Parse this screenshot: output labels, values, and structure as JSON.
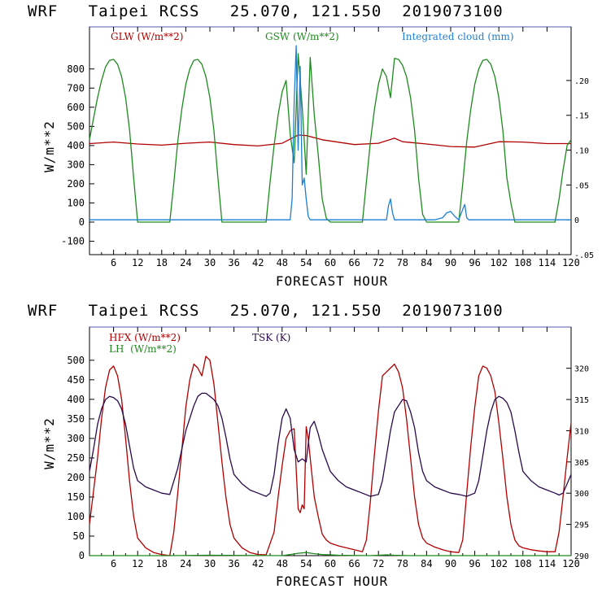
{
  "colors": {
    "red": "#b00000",
    "green": "#1e8a1e",
    "blue": "#1e7fd0",
    "purple": "#2a0a4a"
  },
  "chart_data": [
    {
      "type": "line",
      "title": "WRF   Taipei RCSS   25.070, 121.550  2019073100",
      "xlabel": "FORECAST HOUR",
      "ylabel": "W/m**2",
      "xlim": [
        0,
        120
      ],
      "ylim": [
        -170,
        1020
      ],
      "xticks": [
        6,
        12,
        18,
        24,
        30,
        36,
        42,
        48,
        54,
        60,
        66,
        72,
        78,
        84,
        90,
        96,
        102,
        108,
        114,
        120
      ],
      "yticks": [
        -100,
        0,
        100,
        200,
        300,
        400,
        500,
        600,
        700,
        800
      ],
      "y2lim": [
        -0.05,
        0.277
      ],
      "y2ticks": [
        -0.05,
        0,
        0.05,
        0.1,
        0.15,
        0.2
      ],
      "y2ticklabels": [
        "-.05",
        "0",
        ".05",
        ".10",
        ".15",
        ".20"
      ],
      "series": [
        {
          "name": "GLW (W/m**2)",
          "color": "#b00000",
          "axis": "left",
          "x": [
            0,
            6,
            12,
            18,
            24,
            30,
            36,
            42,
            48,
            52,
            54,
            58,
            66,
            72,
            76,
            78,
            84,
            90,
            96,
            102,
            108,
            114,
            120
          ],
          "y": [
            410,
            418,
            408,
            402,
            412,
            418,
            405,
            398,
            412,
            455,
            452,
            430,
            405,
            412,
            438,
            420,
            408,
            395,
            392,
            420,
            418,
            410,
            410
          ]
        },
        {
          "name": "GSW (W/m**2)",
          "color": "#1e8a1e",
          "axis": "left",
          "x": [
            0,
            1,
            2,
            3,
            4,
            5,
            6,
            7,
            8,
            9,
            10,
            11,
            12,
            20,
            21,
            22,
            23,
            24,
            25,
            26,
            27,
            28,
            29,
            30,
            31,
            32,
            33,
            34,
            35,
            36,
            44,
            45,
            46,
            47,
            48,
            49,
            50,
            51,
            52,
            53,
            54,
            55,
            56,
            57,
            58,
            59,
            60,
            68,
            69,
            70,
            71,
            72,
            73,
            74,
            75,
            76,
            77,
            78,
            79,
            80,
            81,
            82,
            83,
            84,
            92,
            93,
            94,
            95,
            96,
            97,
            98,
            99,
            100,
            101,
            102,
            103,
            104,
            105,
            106,
            107,
            108,
            116,
            117,
            118,
            119,
            120
          ],
          "y": [
            430,
            540,
            650,
            740,
            810,
            845,
            850,
            825,
            760,
            650,
            480,
            230,
            0,
            0,
            200,
            420,
            590,
            720,
            800,
            845,
            850,
            825,
            760,
            650,
            480,
            230,
            0,
            0,
            0,
            0,
            0,
            210,
            400,
            560,
            680,
            740,
            460,
            310,
            880,
            600,
            250,
            860,
            560,
            350,
            120,
            20,
            0,
            0,
            210,
            420,
            590,
            720,
            800,
            760,
            650,
            855,
            850,
            820,
            760,
            650,
            480,
            230,
            40,
            0,
            0,
            200,
            420,
            590,
            720,
            800,
            845,
            850,
            825,
            760,
            650,
            480,
            230,
            100,
            0,
            0,
            0,
            0,
            120,
            270,
            400,
            430
          ]
        },
        {
          "name": "Integrated cloud (mm)",
          "color": "#1e7fd0",
          "axis": "right",
          "x": [
            0,
            50,
            50.5,
            51,
            51.5,
            52,
            52.5,
            53,
            53.5,
            54,
            54.5,
            55,
            55.5,
            74,
            74.5,
            75,
            75.5,
            76,
            86,
            88,
            89,
            90,
            91,
            92,
            93,
            93.5,
            94,
            94.5,
            95,
            120
          ],
          "y": [
            0,
            0,
            0.03,
            0.17,
            0.25,
            0.1,
            0.22,
            0.05,
            0.06,
            0.03,
            0.005,
            0,
            0,
            0,
            0.02,
            0.03,
            0.01,
            0,
            0,
            0.003,
            0.01,
            0.012,
            0.005,
            0,
            0.015,
            0.022,
            0.003,
            0,
            0,
            0
          ]
        }
      ],
      "legend": [
        {
          "label": "GLW (W/m**2)",
          "color": "#b00000"
        },
        {
          "label": "GSW (W/m**2)",
          "color": "#1e8a1e"
        },
        {
          "label": "Integrated cloud (mm)",
          "color": "#1e7fd0"
        }
      ]
    },
    {
      "type": "line",
      "title": "WRF   Taipei RCSS   25.070, 121.550  2019073100",
      "xlabel": "FORECAST HOUR",
      "ylabel": "W/m**2",
      "xlim": [
        0,
        120
      ],
      "ylim": [
        0,
        585
      ],
      "xticks": [
        6,
        12,
        18,
        24,
        30,
        36,
        42,
        48,
        54,
        60,
        66,
        72,
        78,
        84,
        90,
        96,
        102,
        108,
        114,
        120
      ],
      "yticks": [
        0,
        50,
        100,
        150,
        200,
        250,
        300,
        350,
        400,
        450,
        500
      ],
      "y2lim": [
        290,
        326.6
      ],
      "y2ticks": [
        290,
        295,
        300,
        305,
        310,
        315,
        320
      ],
      "y2ticklabels": [
        "290",
        "295",
        "300",
        "305",
        "310",
        "315",
        "320"
      ],
      "series": [
        {
          "name": "HFX (W/m**2)",
          "color": "#b00000",
          "axis": "left",
          "x": [
            0,
            2,
            3,
            4,
            5,
            6,
            7,
            8,
            9,
            10,
            11,
            12,
            14,
            16,
            18,
            20,
            21,
            22,
            23,
            24,
            25,
            26,
            27,
            28,
            29,
            30,
            31,
            32,
            33,
            34,
            35,
            36,
            38,
            40,
            42,
            44,
            46,
            47,
            48,
            49,
            50,
            51,
            52,
            52.5,
            53,
            53.5,
            54,
            54.5,
            55,
            56,
            57,
            58,
            59,
            60,
            62,
            64,
            66,
            68,
            69,
            70,
            71,
            72,
            73,
            74,
            75,
            76,
            77,
            78,
            79,
            80,
            81,
            82,
            83,
            84,
            86,
            88,
            90,
            92,
            93,
            94,
            95,
            96,
            97,
            98,
            99,
            100,
            101,
            102,
            103,
            104,
            105,
            106,
            107,
            108,
            110,
            112,
            114,
            116,
            117,
            118,
            119,
            120
          ],
          "y": [
            80,
            250,
            350,
            430,
            475,
            485,
            460,
            400,
            300,
            190,
            100,
            45,
            20,
            8,
            3,
            0,
            60,
            160,
            270,
            380,
            450,
            490,
            480,
            460,
            510,
            500,
            440,
            340,
            240,
            150,
            80,
            45,
            20,
            8,
            3,
            2,
            60,
            150,
            230,
            300,
            320,
            325,
            120,
            110,
            130,
            120,
            330,
            300,
            250,
            150,
            100,
            55,
            40,
            32,
            25,
            20,
            15,
            10,
            40,
            140,
            260,
            370,
            460,
            470,
            480,
            490,
            470,
            430,
            350,
            250,
            150,
            80,
            45,
            32,
            22,
            15,
            10,
            8,
            40,
            160,
            280,
            380,
            460,
            485,
            480,
            460,
            420,
            340,
            250,
            150,
            80,
            40,
            25,
            20,
            15,
            12,
            10,
            10,
            60,
            150,
            250,
            340
          ]
        },
        {
          "name": "LH (W/m**2)",
          "color": "#1e8a1e",
          "axis": "left",
          "x": [
            0,
            20,
            30,
            48,
            50,
            52,
            54,
            56,
            58,
            60,
            62,
            70,
            72,
            74,
            76,
            80,
            120
          ],
          "y": [
            0,
            0,
            1,
            0,
            3,
            6,
            8,
            5,
            3,
            2,
            1,
            0,
            1,
            2,
            1,
            0,
            0
          ]
        },
        {
          "name": "TSK (K)",
          "color": "#2a0a4a",
          "axis": "right",
          "x": [
            0,
            1,
            2,
            3,
            4,
            5,
            6,
            7,
            8,
            9,
            10,
            11,
            12,
            14,
            16,
            18,
            20,
            22,
            24,
            26,
            27,
            28,
            29,
            30,
            31,
            32,
            33,
            34,
            35,
            36,
            38,
            40,
            42,
            44,
            45,
            46,
            47,
            48,
            49,
            50,
            51,
            52,
            53,
            54,
            55,
            56,
            57,
            58,
            60,
            62,
            64,
            66,
            68,
            70,
            72,
            73,
            74,
            75,
            76,
            77,
            78,
            79,
            80,
            81,
            82,
            83,
            84,
            86,
            88,
            90,
            92,
            94,
            96,
            97,
            98,
            99,
            100,
            101,
            102,
            103,
            104,
            105,
            106,
            107,
            108,
            110,
            112,
            114,
            116,
            117,
            118,
            119,
            120
          ],
          "y": [
            303.5,
            307,
            311,
            313.5,
            315,
            315.5,
            315.3,
            314.8,
            313.5,
            311,
            307.5,
            304,
            302,
            301,
            300.5,
            300,
            299.8,
            304,
            310,
            314,
            315.5,
            316,
            316,
            315.5,
            315,
            314,
            312,
            309,
            305.5,
            303,
            301.5,
            300.5,
            300,
            299.5,
            300,
            303,
            308,
            312,
            313.5,
            312,
            307,
            305,
            305.5,
            305,
            310.5,
            311.5,
            309.5,
            307,
            303.5,
            302,
            301,
            300.5,
            300,
            299.5,
            299.8,
            302,
            306,
            310,
            313,
            314,
            315,
            314.8,
            313,
            310.5,
            306.5,
            303.5,
            302,
            301,
            300.5,
            300,
            299.8,
            299.5,
            300,
            302,
            306,
            310,
            313,
            315,
            315.5,
            315.2,
            314.5,
            313,
            310,
            306.5,
            303.5,
            302,
            301,
            300.5,
            300,
            299.7,
            300,
            301.5,
            303
          ]
        }
      ],
      "legend": [
        {
          "label": "HFX (W/m**2)",
          "color": "#b00000"
        },
        {
          "label": "LH  (W/m**2)",
          "color": "#1e8a1e"
        },
        {
          "label": "TSK (K)",
          "color": "#2a0a4a"
        }
      ]
    }
  ]
}
